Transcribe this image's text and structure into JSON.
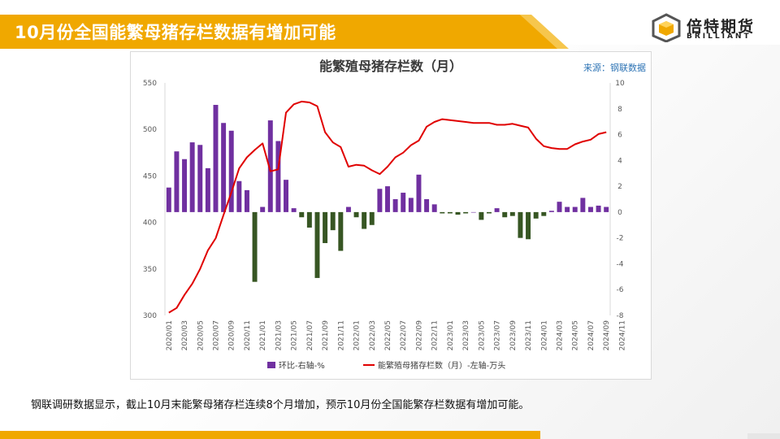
{
  "header": {
    "title": "10月份全国能繁母猪存栏数据有增加可能"
  },
  "logo": {
    "name": "倍特期货",
    "en": "BRILLIANT",
    "icon": "cube-logo-icon"
  },
  "caption": "钢联调研数据显示，截止10月末能繁母猪存栏连续8个月增加，预示10月份全国能繁存栏数据有增加可能。",
  "colors": {
    "accent": "#f0a800",
    "bar_up": "#7030a0",
    "bar_down": "#375623",
    "line": "#e00000"
  },
  "chart_data": {
    "type": "bar+line",
    "title": "能繁殖母猪存栏数（月）",
    "source": "来源：钢联数据",
    "x_tick_labels": [
      "2020/01",
      "2020/03",
      "2020/05",
      "2020/07",
      "2020/09",
      "2020/11",
      "2021/01",
      "2021/03",
      "2021/05",
      "2021/07",
      "2021/09",
      "2021/11",
      "2022/01",
      "2022/03",
      "2022/05",
      "2022/07",
      "2022/09",
      "2022/11",
      "2023/01",
      "2023/03",
      "2023/05",
      "2023/07",
      "2023/09",
      "2023/11",
      "2024/01",
      "2024/03",
      "2024/05",
      "2024/07",
      "2024/09",
      "2024/11"
    ],
    "left_axis": {
      "ylim": [
        300,
        550
      ],
      "ticks": [
        300,
        350,
        400,
        450,
        500,
        550
      ]
    },
    "right_axis": {
      "ylim": [
        -8,
        10
      ],
      "ticks": [
        -8,
        -6,
        -4,
        -2,
        0,
        2,
        4,
        6,
        8,
        10
      ]
    },
    "legend": [
      {
        "name": "环比-右轴-%",
        "kind": "bar"
      },
      {
        "name": "能繁殖母猪存栏数（月）-左轴-万头",
        "kind": "line"
      }
    ],
    "series": [
      {
        "name": "环比-右轴-%",
        "axis": "right",
        "values": [
          1.9,
          4.7,
          4.1,
          5.4,
          5.2,
          3.4,
          8.3,
          6.9,
          6.3,
          2.4,
          1.7,
          -5.4,
          0.4,
          7.1,
          5.5,
          2.5,
          0.3,
          -0.4,
          -1.2,
          -5.1,
          -2.4,
          -1.4,
          -3.0,
          0.4,
          -0.4,
          -1.3,
          -1.0,
          1.8,
          2.0,
          1.0,
          1.5,
          1.1,
          2.9,
          1.0,
          0.6,
          -0.1,
          -0.1,
          -0.2,
          -0.1,
          -0.0,
          -0.6,
          -0.1,
          0.3,
          -0.4,
          -0.3,
          -2.0,
          -2.1,
          -0.5,
          -0.3,
          0.1,
          0.8,
          0.4,
          0.4,
          1.1,
          0.4,
          0.5,
          0.4
        ]
      },
      {
        "name": "能繁殖母猪存栏数（月）-左轴-万头",
        "axis": "left",
        "values": [
          303,
          308,
          322,
          334,
          350,
          370,
          383,
          408,
          432,
          458,
          470,
          478,
          485,
          455,
          457,
          518,
          527,
          530,
          529,
          525,
          497,
          486,
          481,
          460,
          462,
          461,
          456,
          452,
          460,
          470,
          475,
          483,
          488,
          503,
          508,
          511,
          510,
          509,
          508,
          507,
          507,
          507,
          505,
          505,
          506,
          504,
          502,
          490,
          482,
          480,
          479,
          479,
          484,
          487,
          489,
          495,
          497
        ]
      }
    ]
  }
}
